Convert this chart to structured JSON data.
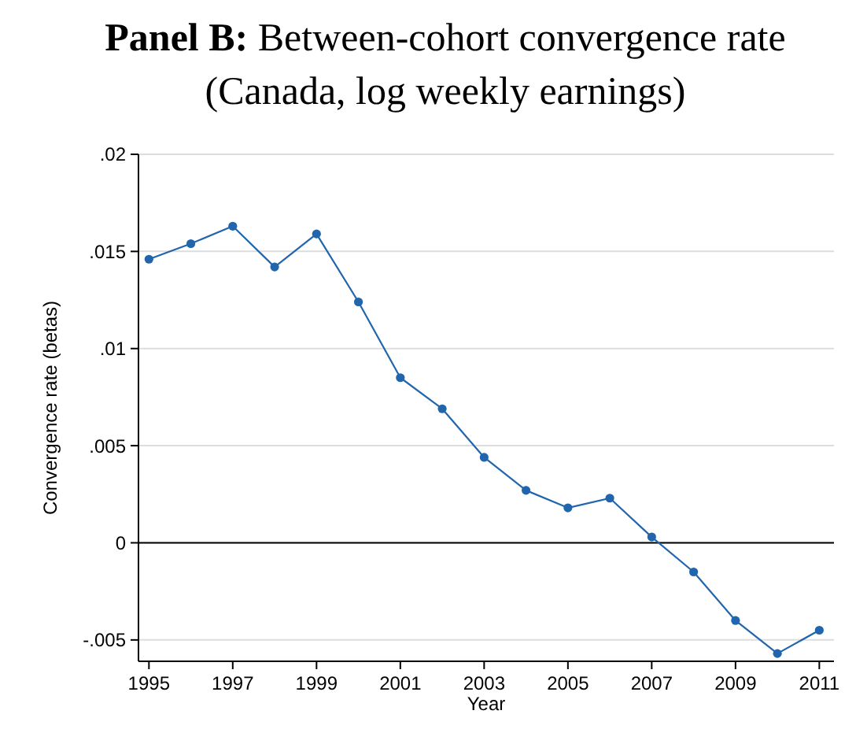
{
  "chart_data": {
    "type": "line",
    "title": "Panel B: Between-cohort convergence rate",
    "subtitle": "(Canada, log weekly earnings)",
    "xlabel": "Year",
    "ylabel": "Convergence rate (betas)",
    "x": [
      1995,
      1996,
      1997,
      1998,
      1999,
      2000,
      2001,
      2002,
      2003,
      2004,
      2005,
      2006,
      2007,
      2008,
      2009,
      2010,
      2011
    ],
    "series": [
      {
        "color": "#2166ac",
        "values": [
          0.0146,
          0.0154,
          0.0163,
          0.0142,
          0.0159,
          0.0124,
          0.0085,
          0.0069,
          0.0044,
          0.0027,
          0.0018,
          0.0023,
          0.0003,
          -0.0015,
          -0.004,
          -0.0057,
          -0.0045
        ]
      }
    ],
    "xlim": [
      1994.75,
      2011.35
    ],
    "xticks": [
      1995,
      1997,
      1999,
      2001,
      2003,
      2005,
      2007,
      2009,
      2011
    ],
    "ylim": [
      -0.0061,
      0.02
    ],
    "yticks": [
      {
        "value": -0.005,
        "label": "-.005"
      },
      {
        "value": 0,
        "label": "0"
      },
      {
        "value": 0.005,
        "label": ".005"
      },
      {
        "value": 0.01,
        "label": ".01"
      },
      {
        "value": 0.015,
        "label": ".015"
      },
      {
        "value": 0.02,
        "label": ".02"
      }
    ],
    "ref_lines": [
      {
        "axis": "y",
        "value": 0,
        "color": "#000000"
      }
    ],
    "grid": "y",
    "marker": "circle",
    "line_style": "solid"
  }
}
